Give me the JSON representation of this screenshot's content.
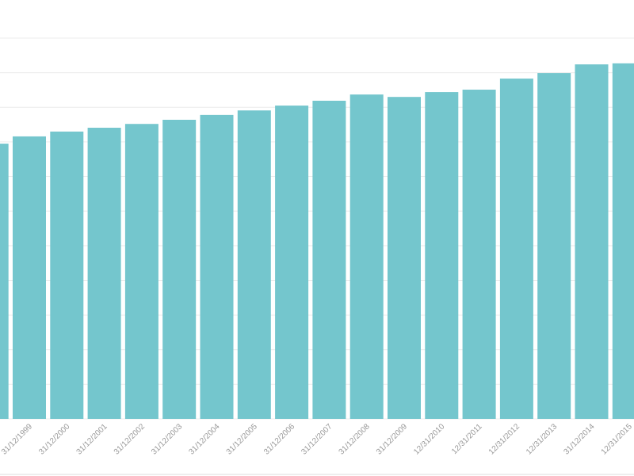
{
  "chart_data": {
    "type": "bar",
    "categories": [
      null,
      "31/12/1999",
      "31/12/2000",
      "31/12/2001",
      "31/12/2002",
      "31/12/2003",
      "31/12/2004",
      "31/12/2005",
      "31/12/2006",
      "31/12/2007",
      "31/12/2008",
      "31/12/2009",
      "12/31/2010",
      "12/31/2011",
      "12/31/2012",
      "12/31/2013",
      "31/12/2014",
      "12/31/2015"
    ],
    "values": [
      7.95,
      8.16,
      8.3,
      8.41,
      8.52,
      8.64,
      8.78,
      8.91,
      9.05,
      9.19,
      9.37,
      9.3,
      9.44,
      9.51,
      9.83,
      9.99,
      10.24,
      10.27
    ],
    "color": "#74c6cd",
    "ylim": [
      0,
      11
    ],
    "grid": true
  }
}
